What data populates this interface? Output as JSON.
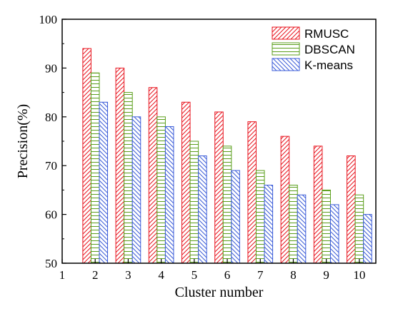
{
  "chart_data": {
    "type": "bar",
    "xlabel": "Cluster number",
    "ylabel": "Precision(%)",
    "xlim": [
      1,
      10.5
    ],
    "ylim": [
      50,
      100
    ],
    "xticks": [
      1,
      2,
      3,
      4,
      5,
      6,
      7,
      8,
      9,
      10
    ],
    "yticks": [
      50,
      60,
      70,
      80,
      90,
      100
    ],
    "categories": [
      2,
      3,
      4,
      5,
      6,
      7,
      8,
      9,
      10
    ],
    "legend_position": "top-right",
    "series": [
      {
        "name": "RMUSC",
        "color": "#e8141e",
        "pattern": "diagonal",
        "values": [
          94,
          90,
          86,
          83,
          81,
          79,
          76,
          74,
          72
        ]
      },
      {
        "name": "DBSCAN",
        "color": "#5a9e1a",
        "pattern": "horizontal",
        "values": [
          89,
          85,
          80,
          75,
          74,
          69,
          66,
          65,
          64
        ]
      },
      {
        "name": "K-means",
        "color": "#3a5bd8",
        "pattern": "back-diagonal",
        "values": [
          83,
          80,
          78,
          72,
          69,
          66,
          64,
          62,
          60
        ]
      }
    ]
  }
}
